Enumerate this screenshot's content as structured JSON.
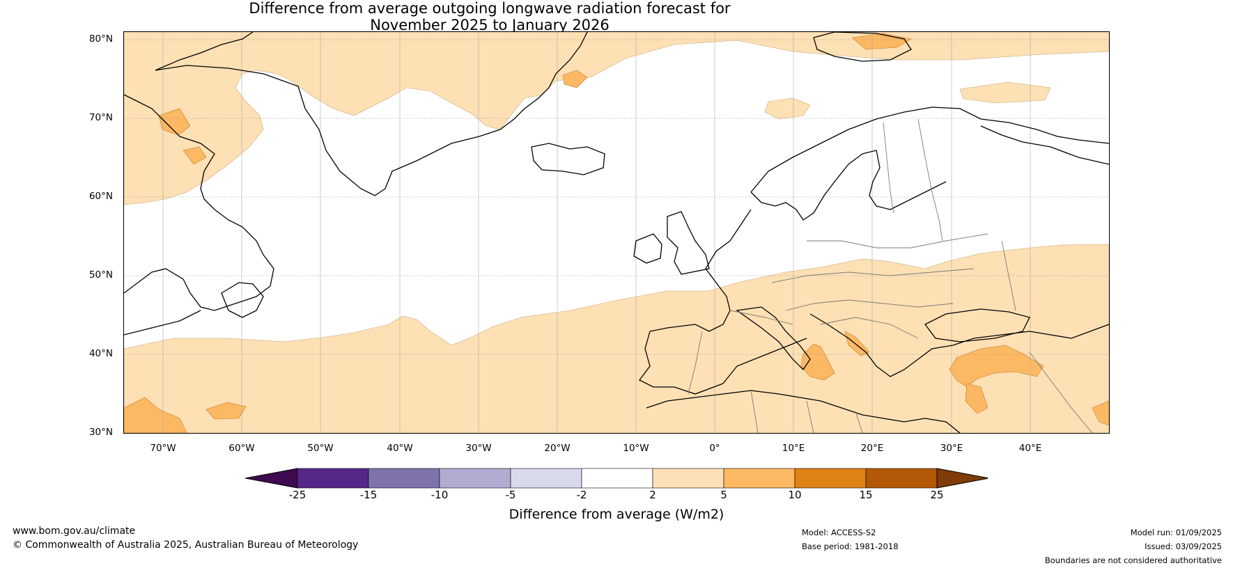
{
  "title": {
    "line1": "Difference from average outgoing longwave radiation forecast for",
    "line2": "November 2025 to January 2026"
  },
  "map": {
    "lat_labels": [
      "80°N",
      "70°N",
      "60°N",
      "50°N",
      "40°N",
      "30°N"
    ],
    "lon_labels": [
      "70°W",
      "60°W",
      "50°W",
      "40°W",
      "30°W",
      "20°W",
      "10°W",
      "0°",
      "10°E",
      "20°E",
      "30°E",
      "40°E"
    ],
    "lon_range": [
      -75,
      50
    ],
    "lat_range": [
      30,
      81
    ],
    "anomaly_colors": {
      "2_to_5": "#fde0b4",
      "5_to_10": "#fdb863",
      "land_line": "#000000",
      "border_line": "#808080"
    }
  },
  "colorbar": {
    "ticks": [
      "-25",
      "-15",
      "-10",
      "-5",
      "-2",
      "2",
      "5",
      "10",
      "15",
      "25"
    ],
    "colors": [
      "#3f0a4f",
      "#542788",
      "#8073ac",
      "#b2abd2",
      "#d8daeb",
      "#ffffff",
      "#fee0b6",
      "#fdb863",
      "#e08214",
      "#b35806",
      "#7f3b08"
    ],
    "label": "Difference from average (W/m2)"
  },
  "footer": {
    "website": "www.bom.gov.au/climate",
    "copyright": "© Commonwealth of Australia 2025, Australian Bureau of Meteorology",
    "model": "Model: ACCESS-S2",
    "base_period": "Base period: 1981-2018",
    "model_run": "Model run: 01/09/2025",
    "issued": "Issued: 03/09/2025",
    "disclaimer": "Boundaries are not considered authoritative"
  }
}
